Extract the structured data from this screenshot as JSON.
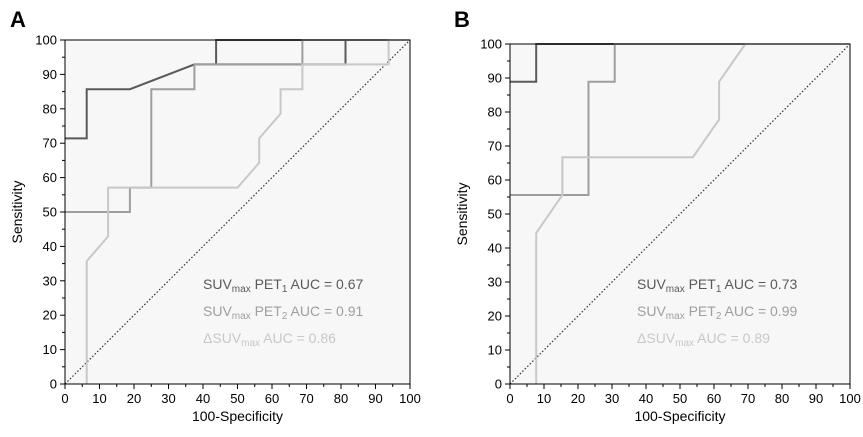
{
  "colors": {
    "dark": "#5a5a5a",
    "mid": "#9e9e9e",
    "light": "#c8c8c8",
    "plot_bg": "#f7f7f7",
    "diagonal": "#333333"
  },
  "chart_data": [
    {
      "panel": "A",
      "type": "line",
      "xlabel": "100-Specificity",
      "ylabel": "Sensitivity",
      "xlim": [
        0,
        100
      ],
      "ylim": [
        0,
        100
      ],
      "xticks": [
        0,
        10,
        20,
        30,
        40,
        50,
        60,
        70,
        80,
        90,
        100
      ],
      "yticks": [
        0,
        10,
        20,
        30,
        40,
        50,
        60,
        70,
        80,
        90,
        100
      ],
      "grid": false,
      "reference_line": "diagonal",
      "series": [
        {
          "name_parts": [
            "SUV",
            "max",
            " PET",
            "1",
            " AUC = 0.67"
          ],
          "color_key": "dark",
          "points": [
            [
              0,
              71.4
            ],
            [
              6.3,
              71.4
            ],
            [
              6.3,
              85.7
            ],
            [
              18.8,
              85.7
            ],
            [
              37.5,
              92.9
            ],
            [
              43.8,
              92.9
            ],
            [
              43.8,
              100
            ],
            [
              81.3,
              100
            ],
            [
              81.3,
              92.9
            ],
            [
              43.8,
              92.9
            ],
            [
              43.8,
              100
            ],
            [
              100,
              100
            ]
          ]
        },
        {
          "name_parts": [
            "SUV",
            "max",
            " PET",
            "2",
            " AUC = 0.91"
          ],
          "color_key": "mid",
          "points": [
            [
              0,
              50
            ],
            [
              18.8,
              50
            ],
            [
              18.8,
              57.1
            ],
            [
              25,
              57.1
            ],
            [
              25,
              85.7
            ],
            [
              37.5,
              85.7
            ],
            [
              37.5,
              92.9
            ],
            [
              62.5,
              92.9
            ],
            [
              68.8,
              92.9
            ],
            [
              68.8,
              100
            ],
            [
              100,
              100
            ]
          ]
        },
        {
          "name_parts": [
            "ΔSUV",
            "max",
            "",
            "",
            " AUC = 0.86"
          ],
          "color_key": "light",
          "points": [
            [
              6.3,
              0
            ],
            [
              6.3,
              35.7
            ],
            [
              12.5,
              42.9
            ],
            [
              12.5,
              57.1
            ],
            [
              50,
              57.1
            ],
            [
              56.3,
              64.3
            ],
            [
              56.3,
              71.4
            ],
            [
              62.5,
              78.6
            ],
            [
              62.5,
              85.7
            ],
            [
              68.8,
              85.7
            ],
            [
              68.8,
              92.9
            ],
            [
              93.8,
              92.9
            ],
            [
              93.8,
              100
            ],
            [
              100,
              100
            ]
          ]
        }
      ]
    },
    {
      "panel": "B",
      "type": "line",
      "xlabel": "100-Specificity",
      "ylabel": "Sensitivity",
      "xlim": [
        0,
        100
      ],
      "ylim": [
        0,
        100
      ],
      "xticks": [
        0,
        10,
        20,
        30,
        40,
        50,
        60,
        70,
        80,
        90,
        100
      ],
      "yticks": [
        0,
        10,
        20,
        30,
        40,
        50,
        60,
        70,
        80,
        90,
        100
      ],
      "grid": false,
      "reference_line": "diagonal",
      "series": [
        {
          "name_parts": [
            "SUV",
            "max",
            " PET",
            "1",
            " AUC = 0.73"
          ],
          "color_key": "dark",
          "points": [
            [
              0,
              88.9
            ],
            [
              7.7,
              88.9
            ],
            [
              7.7,
              100
            ],
            [
              100,
              100
            ]
          ]
        },
        {
          "name_parts": [
            "SUV",
            "max",
            " PET",
            "2",
            " AUC = 0.99"
          ],
          "color_key": "mid",
          "points": [
            [
              0,
              55.6
            ],
            [
              23.1,
              55.6
            ],
            [
              23.1,
              88.9
            ],
            [
              30.8,
              88.9
            ],
            [
              30.8,
              100
            ],
            [
              100,
              100
            ]
          ]
        },
        {
          "name_parts": [
            "ΔSUV",
            "max",
            "",
            "",
            " AUC = 0.89"
          ],
          "color_key": "light",
          "points": [
            [
              7.7,
              0
            ],
            [
              7.7,
              44.4
            ],
            [
              15.4,
              55.6
            ],
            [
              15.4,
              66.7
            ],
            [
              53.8,
              66.7
            ],
            [
              61.5,
              77.8
            ],
            [
              61.5,
              88.9
            ],
            [
              69.2,
              100
            ],
            [
              100,
              100
            ]
          ]
        }
      ]
    }
  ]
}
